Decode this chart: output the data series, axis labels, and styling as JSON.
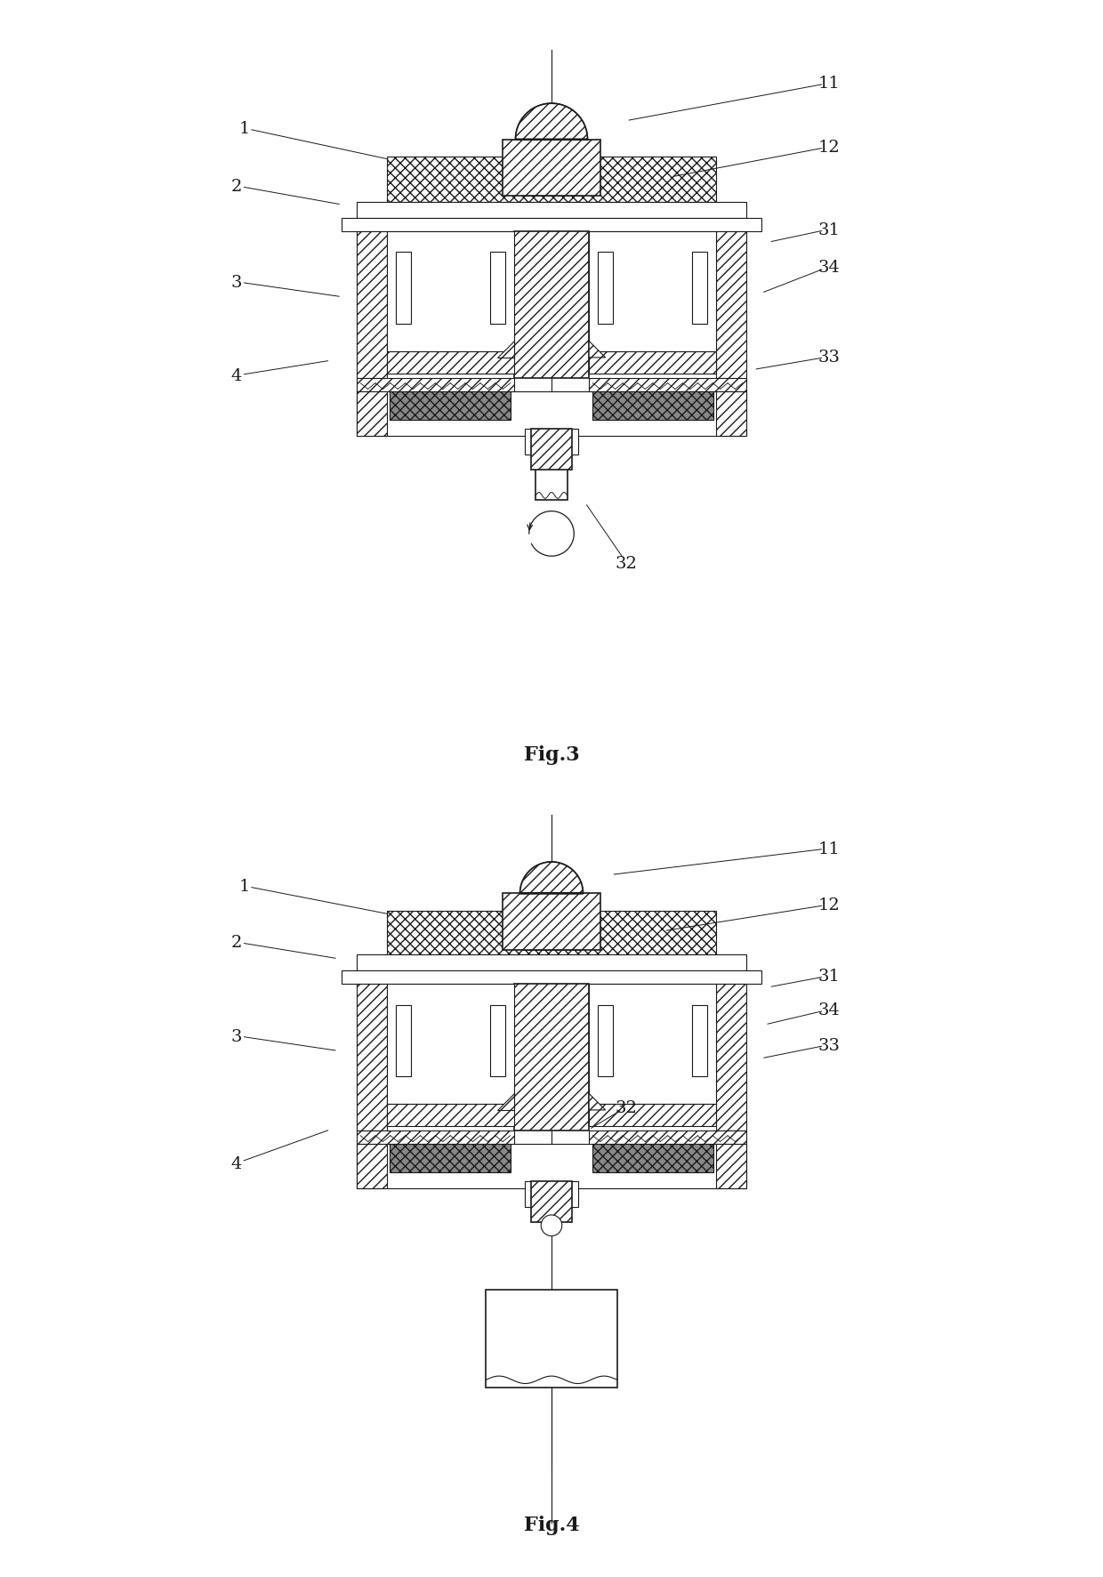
{
  "bg_color": "#ffffff",
  "line_color": "#1a1a1a",
  "fig3_caption": "Fig.3",
  "fig4_caption": "Fig.4",
  "font_size_label": 14,
  "font_size_caption": 16
}
